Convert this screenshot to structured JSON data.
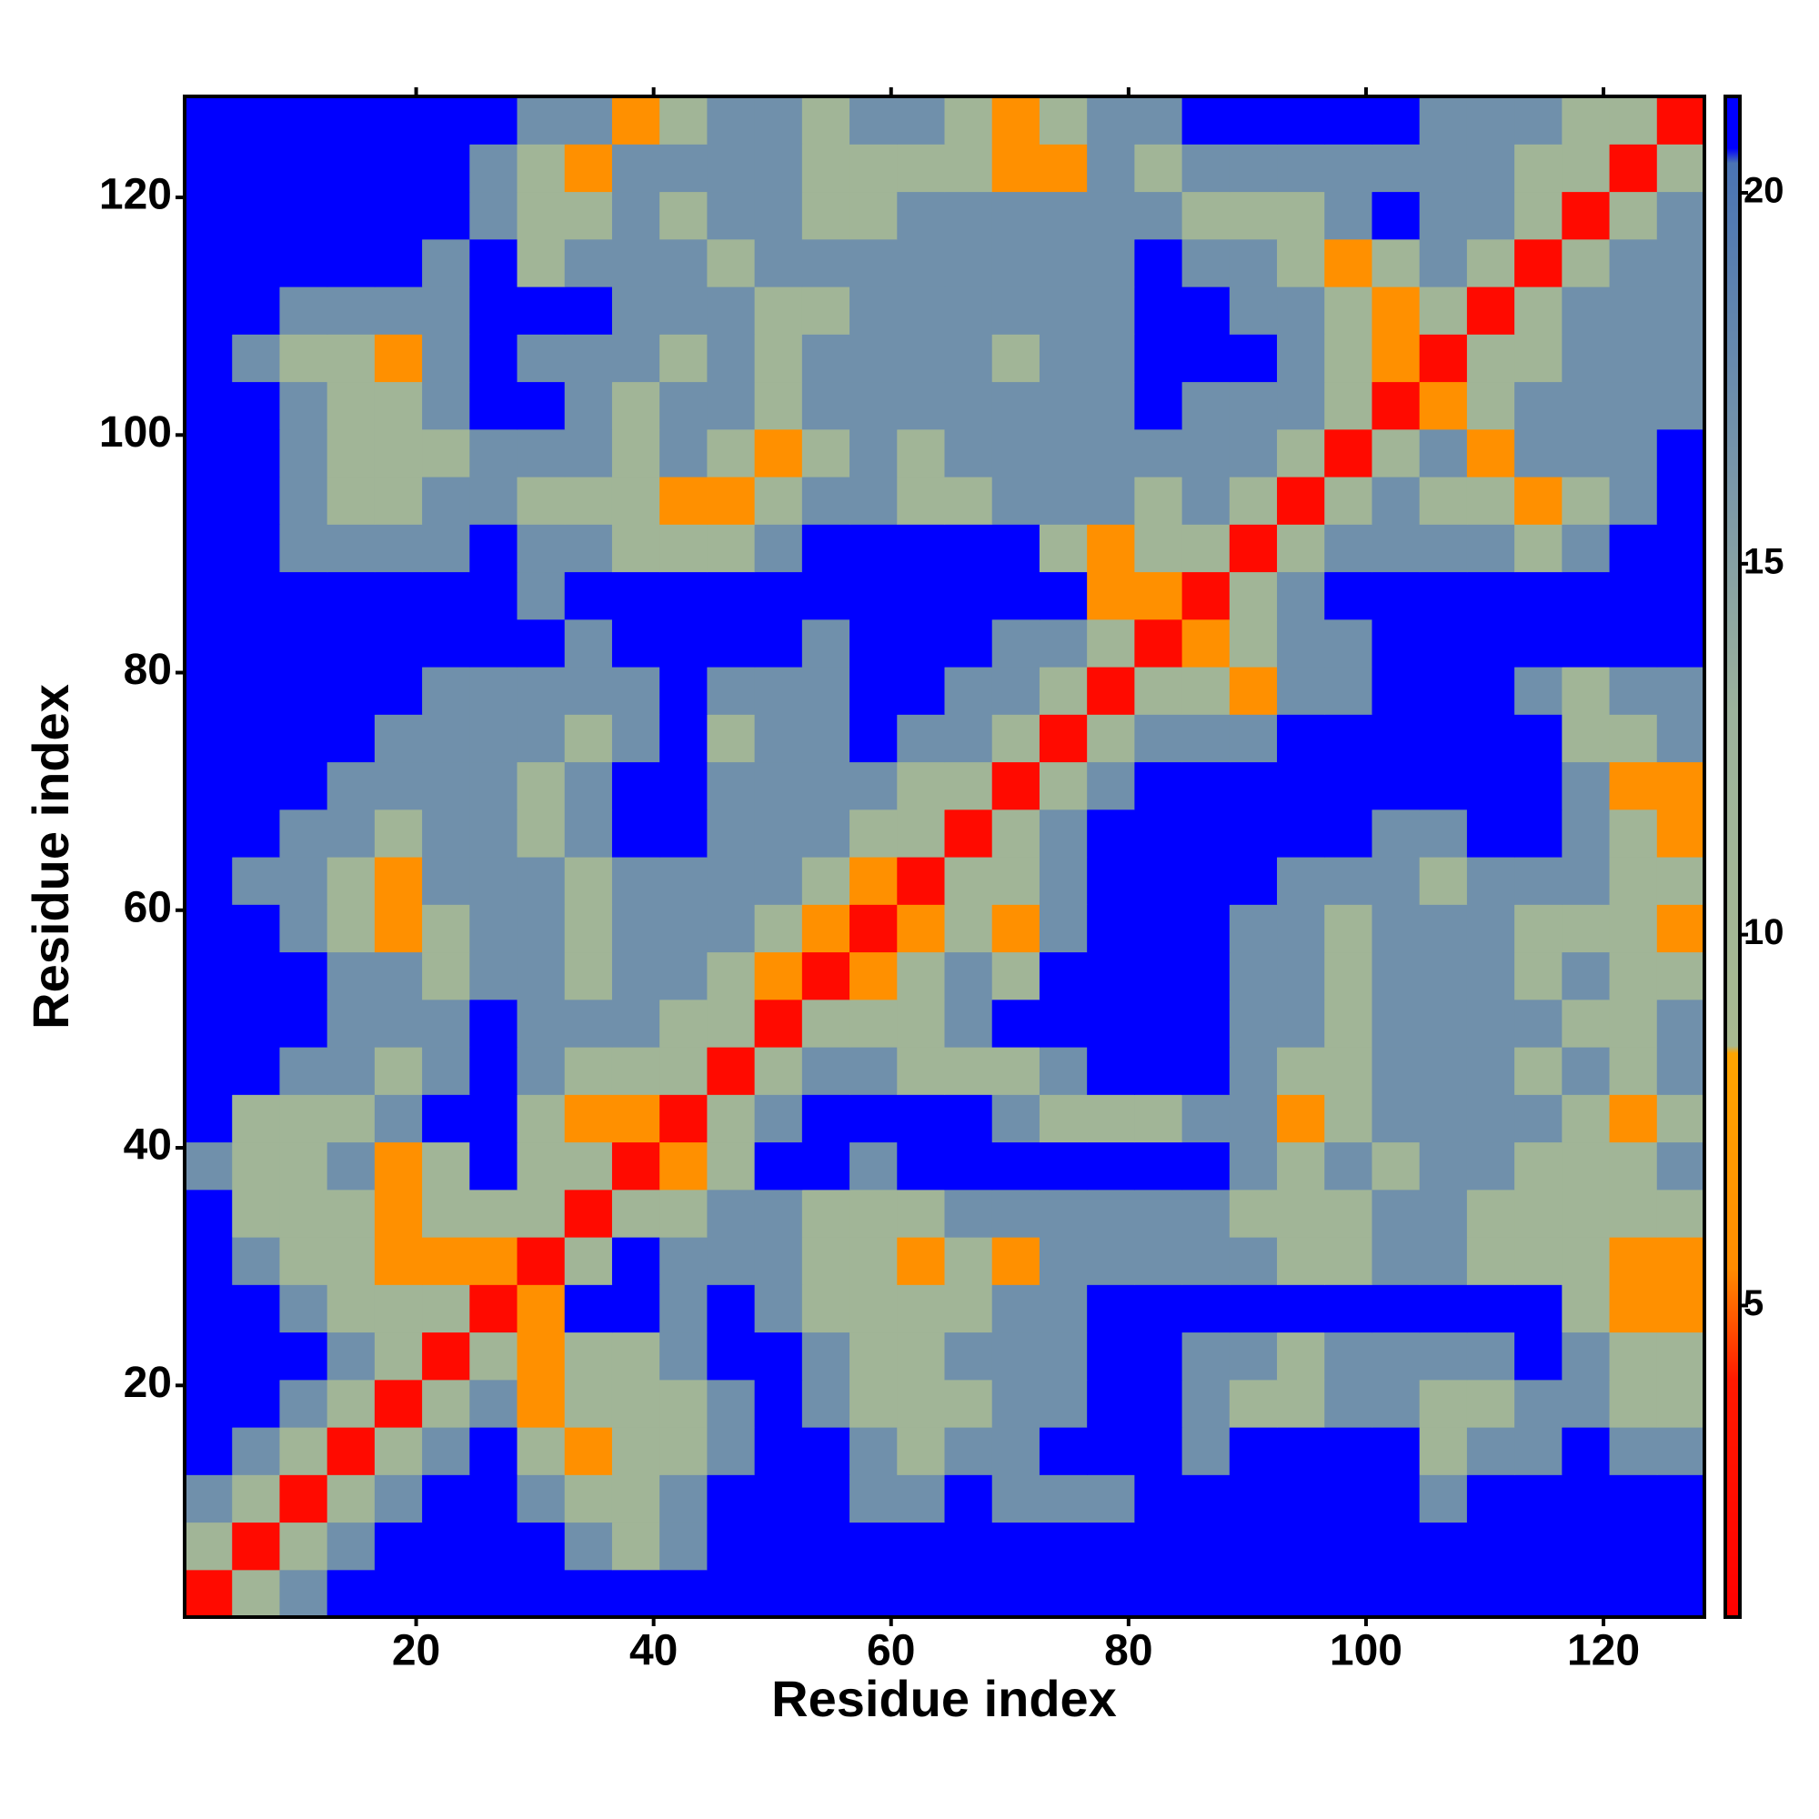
{
  "chart_data": {
    "type": "heatmap",
    "x_label": "Residue index",
    "y_label": "Residue index",
    "x": [
      2.5,
      6.5,
      10.5,
      14.5,
      18.5,
      22.5,
      26.5,
      30.5,
      34.5,
      38.5,
      42.5,
      46.5,
      50.5,
      54.5,
      58.5,
      62.5,
      66.5,
      70.5,
      74.5,
      78.5,
      82.5,
      86.5,
      90.5,
      94.5,
      98.5,
      102.5,
      106.5,
      110.5,
      114.5,
      118.5,
      122.5,
      126.5
    ],
    "y": [
      2.5,
      6.5,
      10.5,
      14.5,
      18.5,
      22.5,
      26.5,
      30.5,
      34.5,
      38.5,
      42.5,
      46.5,
      50.5,
      54.5,
      58.5,
      62.5,
      66.5,
      70.5,
      74.5,
      78.5,
      82.5,
      86.5,
      90.5,
      94.5,
      98.5,
      102.5,
      106.5,
      110.5,
      114.5,
      118.5,
      122.5,
      126.5
    ],
    "xlim": [
      0.5,
      128.5
    ],
    "ylim": [
      0.5,
      128.5
    ],
    "xticks": [
      20,
      40,
      60,
      80,
      100,
      120
    ],
    "yticks": [
      20,
      40,
      60,
      80,
      100,
      120
    ],
    "zlim": [
      0.8,
      21.3
    ],
    "zticks": [
      5,
      10,
      15,
      20
    ],
    "colorscale": [
      {
        "value": 0.8,
        "color": "#ff0000"
      },
      {
        "value": 4,
        "color": "#ff1a00"
      },
      {
        "value": 5.5,
        "color": "#ff8c00"
      },
      {
        "value": 8.4,
        "color": "#ffa500"
      },
      {
        "value": 8.5,
        "color": "#a8b990"
      },
      {
        "value": 13,
        "color": "#9cb29c"
      },
      {
        "value": 16,
        "color": "#7b98a8"
      },
      {
        "value": 20.4,
        "color": "#4a74b4"
      },
      {
        "value": 20.6,
        "color": "#0000ff"
      },
      {
        "value": 21.3,
        "color": "#0000ff"
      }
    ],
    "z": [
      [
        2,
        11,
        17,
        21,
        21,
        21,
        21,
        21,
        21,
        21,
        21,
        21,
        21,
        21,
        21,
        21,
        21,
        21,
        21,
        21,
        21,
        21,
        21,
        21,
        21,
        21,
        21,
        21,
        21,
        21,
        21,
        21
      ],
      [
        11,
        2,
        11,
        17,
        21,
        21,
        21,
        21,
        17,
        11,
        17,
        21,
        21,
        21,
        21,
        21,
        21,
        21,
        21,
        21,
        21,
        21,
        21,
        21,
        21,
        21,
        21,
        21,
        21,
        21,
        21,
        21
      ],
      [
        17,
        11,
        2,
        11,
        17,
        21,
        21,
        17,
        11,
        11,
        17,
        21,
        21,
        21,
        17,
        17,
        21,
        17,
        17,
        17,
        21,
        21,
        21,
        21,
        21,
        21,
        17,
        21,
        21,
        21,
        21,
        21
      ],
      [
        21,
        17,
        11,
        2,
        11,
        17,
        21,
        11,
        6,
        11,
        11,
        17,
        21,
        21,
        17,
        11,
        17,
        17,
        21,
        21,
        21,
        17,
        21,
        21,
        21,
        21,
        11,
        17,
        17,
        21,
        17,
        17
      ],
      [
        21,
        21,
        17,
        11,
        2,
        11,
        17,
        6,
        11,
        11,
        11,
        17,
        21,
        17,
        11,
        11,
        11,
        17,
        17,
        21,
        21,
        17,
        11,
        11,
        17,
        17,
        11,
        11,
        17,
        17,
        11,
        11
      ],
      [
        21,
        21,
        21,
        17,
        11,
        2,
        11,
        6,
        11,
        11,
        17,
        21,
        21,
        17,
        11,
        11,
        17,
        17,
        17,
        21,
        21,
        17,
        17,
        11,
        17,
        17,
        17,
        17,
        21,
        17,
        11,
        11
      ],
      [
        21,
        21,
        17,
        11,
        11,
        11,
        2,
        6,
        21,
        21,
        17,
        21,
        17,
        11,
        11,
        11,
        11,
        17,
        17,
        21,
        21,
        21,
        21,
        21,
        21,
        21,
        21,
        21,
        21,
        11,
        6,
        6
      ],
      [
        21,
        17,
        11,
        11,
        6,
        6,
        6,
        2,
        11,
        21,
        17,
        17,
        17,
        11,
        11,
        6,
        11,
        6,
        17,
        17,
        17,
        17,
        17,
        11,
        11,
        17,
        17,
        11,
        11,
        11,
        6,
        6
      ],
      [
        21,
        11,
        11,
        11,
        6,
        11,
        11,
        11,
        2,
        11,
        11,
        17,
        17,
        11,
        11,
        11,
        17,
        17,
        17,
        17,
        17,
        17,
        11,
        11,
        11,
        17,
        17,
        11,
        11,
        11,
        11,
        11
      ],
      [
        17,
        11,
        11,
        17,
        6,
        11,
        21,
        11,
        11,
        2,
        6,
        11,
        21,
        21,
        17,
        21,
        21,
        21,
        21,
        21,
        21,
        21,
        17,
        11,
        17,
        11,
        17,
        17,
        11,
        11,
        11,
        17
      ],
      [
        21,
        11,
        11,
        11,
        17,
        21,
        21,
        11,
        6,
        6,
        2,
        11,
        17,
        21,
        21,
        21,
        21,
        17,
        11,
        11,
        11,
        17,
        17,
        6,
        11,
        17,
        17,
        17,
        17,
        11,
        6,
        11
      ],
      [
        21,
        21,
        17,
        17,
        11,
        17,
        21,
        17,
        11,
        11,
        11,
        2,
        11,
        17,
        17,
        11,
        11,
        11,
        17,
        21,
        21,
        21,
        17,
        11,
        11,
        17,
        17,
        17,
        11,
        17,
        11,
        17
      ],
      [
        21,
        21,
        21,
        17,
        17,
        17,
        21,
        17,
        17,
        17,
        11,
        11,
        2,
        11,
        11,
        11,
        17,
        21,
        21,
        21,
        21,
        21,
        17,
        17,
        11,
        17,
        17,
        17,
        17,
        11,
        11,
        17
      ],
      [
        21,
        21,
        21,
        17,
        17,
        11,
        17,
        17,
        11,
        17,
        17,
        11,
        6,
        2,
        6,
        11,
        17,
        11,
        21,
        21,
        21,
        21,
        17,
        17,
        11,
        17,
        17,
        17,
        11,
        17,
        11,
        11
      ],
      [
        21,
        21,
        17,
        11,
        6,
        11,
        17,
        17,
        11,
        17,
        17,
        17,
        11,
        6,
        2,
        6,
        11,
        6,
        17,
        21,
        21,
        21,
        17,
        17,
        11,
        17,
        17,
        17,
        11,
        11,
        11,
        6
      ],
      [
        21,
        17,
        17,
        11,
        6,
        17,
        17,
        17,
        11,
        17,
        17,
        17,
        17,
        11,
        6,
        2,
        11,
        11,
        17,
        21,
        21,
        21,
        21,
        17,
        17,
        17,
        11,
        17,
        17,
        17,
        11,
        11
      ],
      [
        21,
        21,
        17,
        17,
        11,
        17,
        17,
        11,
        17,
        21,
        21,
        17,
        17,
        17,
        11,
        11,
        2,
        11,
        17,
        21,
        21,
        21,
        21,
        21,
        21,
        17,
        17,
        21,
        21,
        17,
        11,
        6
      ],
      [
        21,
        21,
        21,
        17,
        17,
        17,
        17,
        11,
        17,
        21,
        21,
        17,
        17,
        17,
        17,
        11,
        11,
        2,
        11,
        17,
        21,
        21,
        21,
        21,
        21,
        21,
        21,
        21,
        21,
        17,
        6,
        6
      ],
      [
        21,
        21,
        21,
        21,
        17,
        17,
        17,
        17,
        11,
        17,
        21,
        11,
        17,
        17,
        21,
        17,
        17,
        11,
        2,
        11,
        17,
        17,
        17,
        21,
        21,
        21,
        21,
        21,
        21,
        11,
        11,
        17
      ],
      [
        21,
        21,
        21,
        21,
        21,
        17,
        17,
        17,
        17,
        17,
        21,
        17,
        17,
        17,
        21,
        21,
        17,
        17,
        11,
        2,
        11,
        11,
        6,
        17,
        17,
        21,
        21,
        21,
        17,
        11,
        17,
        17
      ],
      [
        21,
        21,
        21,
        21,
        21,
        21,
        21,
        21,
        17,
        21,
        21,
        21,
        21,
        17,
        21,
        21,
        21,
        17,
        17,
        11,
        2,
        6,
        11,
        17,
        17,
        21,
        21,
        21,
        21,
        21,
        21,
        21
      ],
      [
        21,
        21,
        21,
        21,
        21,
        21,
        21,
        17,
        21,
        21,
        21,
        21,
        21,
        21,
        21,
        21,
        21,
        21,
        21,
        6,
        6,
        2,
        11,
        17,
        21,
        21,
        21,
        21,
        21,
        21,
        21,
        21
      ],
      [
        21,
        21,
        17,
        17,
        17,
        17,
        21,
        17,
        17,
        11,
        11,
        11,
        17,
        21,
        21,
        21,
        21,
        21,
        11,
        6,
        11,
        11,
        2,
        11,
        17,
        17,
        17,
        17,
        11,
        17,
        21,
        21
      ],
      [
        21,
        21,
        17,
        11,
        11,
        17,
        17,
        11,
        11,
        11,
        6,
        6,
        11,
        17,
        17,
        11,
        11,
        17,
        17,
        17,
        11,
        17,
        11,
        2,
        11,
        17,
        11,
        11,
        6,
        11,
        17,
        21
      ],
      [
        21,
        21,
        17,
        11,
        11,
        11,
        17,
        17,
        17,
        11,
        17,
        11,
        6,
        11,
        17,
        11,
        17,
        17,
        17,
        17,
        17,
        17,
        17,
        11,
        2,
        11,
        17,
        6,
        17,
        17,
        17,
        21
      ],
      [
        21,
        21,
        17,
        11,
        11,
        17,
        21,
        21,
        17,
        11,
        17,
        17,
        11,
        17,
        17,
        17,
        17,
        17,
        17,
        17,
        21,
        17,
        17,
        17,
        11,
        2,
        6,
        11,
        17,
        17,
        17,
        17
      ],
      [
        21,
        17,
        11,
        11,
        6,
        17,
        21,
        17,
        17,
        17,
        11,
        17,
        11,
        17,
        17,
        17,
        17,
        11,
        17,
        17,
        21,
        21,
        21,
        17,
        11,
        6,
        2,
        11,
        11,
        17,
        17,
        17
      ],
      [
        21,
        21,
        17,
        17,
        17,
        17,
        21,
        21,
        21,
        17,
        17,
        17,
        11,
        11,
        17,
        17,
        17,
        17,
        17,
        17,
        21,
        21,
        17,
        17,
        11,
        6,
        11,
        2,
        11,
        17,
        17,
        17
      ],
      [
        21,
        21,
        21,
        21,
        21,
        17,
        21,
        11,
        17,
        17,
        17,
        11,
        17,
        17,
        17,
        17,
        17,
        17,
        17,
        17,
        21,
        17,
        17,
        11,
        6,
        11,
        17,
        11,
        2,
        11,
        17,
        17
      ],
      [
        21,
        21,
        21,
        21,
        21,
        21,
        17,
        11,
        11,
        17,
        11,
        17,
        17,
        11,
        11,
        17,
        17,
        17,
        17,
        17,
        17,
        11,
        11,
        11,
        17,
        21,
        17,
        17,
        11,
        2,
        11,
        17
      ],
      [
        21,
        21,
        21,
        21,
        21,
        21,
        17,
        11,
        6,
        17,
        17,
        17,
        17,
        11,
        11,
        11,
        11,
        6,
        6,
        17,
        11,
        17,
        17,
        17,
        17,
        17,
        17,
        17,
        11,
        11,
        2,
        11
      ],
      [
        21,
        21,
        21,
        21,
        21,
        21,
        21,
        17,
        17,
        6,
        11,
        17,
        17,
        11,
        17,
        17,
        11,
        6,
        11,
        17,
        17,
        21,
        21,
        21,
        21,
        21,
        17,
        17,
        17,
        11,
        11,
        2
      ]
    ]
  }
}
